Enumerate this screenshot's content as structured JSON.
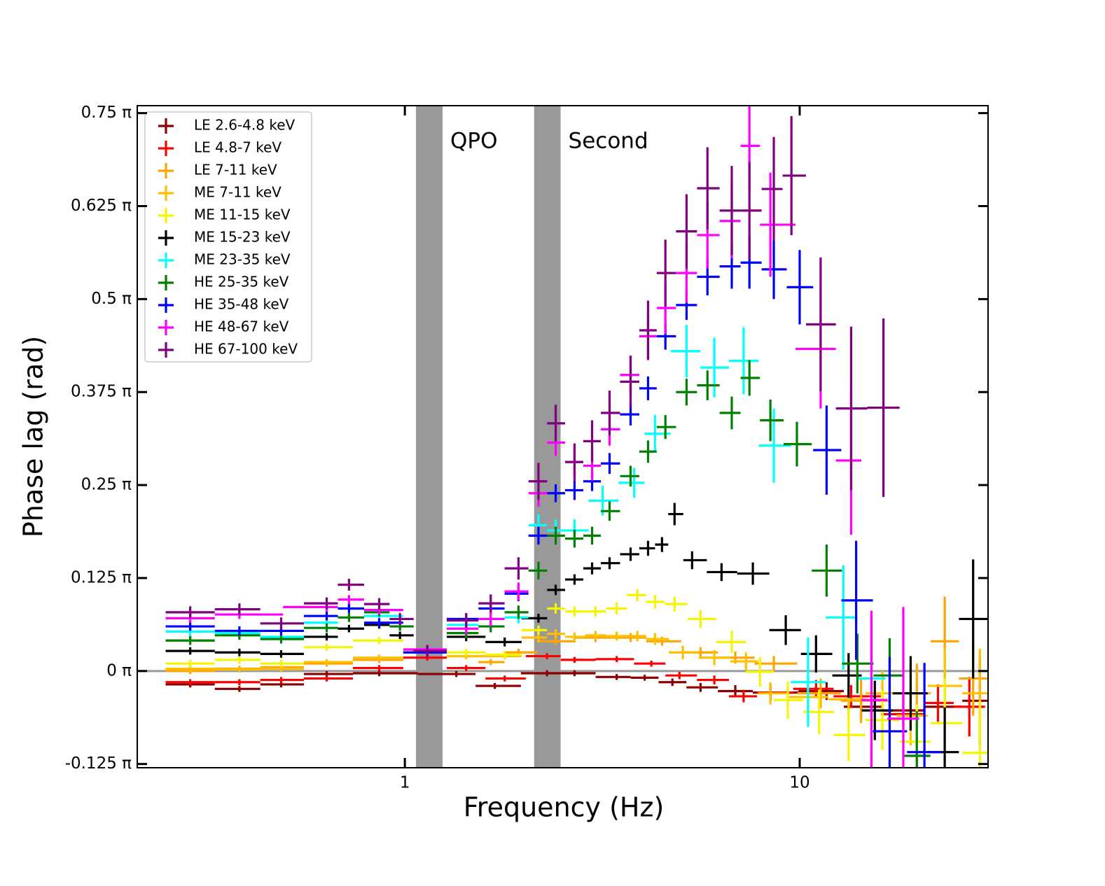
{
  "chart_data": {
    "type": "errorbar",
    "xlabel": "Frequency (Hz)",
    "ylabel": "Phase lag (rad)",
    "xscale": "log",
    "xlim": [
      0.21,
      30
    ],
    "xticks": [
      1,
      10
    ],
    "ylim": [
      -0.13,
      0.76
    ],
    "yticks": [
      {
        "value": -0.125,
        "label": "-0.125 π"
      },
      {
        "value": 0,
        "label": "0 π"
      },
      {
        "value": 0.125,
        "label": "0.125 π"
      },
      {
        "value": 0.25,
        "label": "0.25 π"
      },
      {
        "value": 0.375,
        "label": "0.375 π"
      },
      {
        "value": 0.5,
        "label": "0.5 π"
      },
      {
        "value": 0.625,
        "label": "0.625 π"
      },
      {
        "value": 0.75,
        "label": "0.75 π"
      }
    ],
    "reference_line": 0,
    "shaded_regions": [
      {
        "label": "QPO",
        "range": [
          1.067,
          1.246
        ],
        "color": "#999999"
      },
      {
        "label": "Second",
        "range": [
          2.125,
          2.48
        ],
        "color": "#999999"
      }
    ],
    "legend": "upper left",
    "series": [
      {
        "name": "LE 2.6-4.8 keV",
        "color": "#8b0000",
        "x": [
          0.286,
          0.381,
          0.486,
          0.634,
          0.861,
          1.35,
          1.69,
          2.29,
          2.69,
          3.44,
          4.05,
          4.76,
          5.61,
          6.87,
          8.43,
          11.7,
          14.3,
          18.3,
          23.3,
          28.6
        ],
        "values": [
          -0.018,
          -0.024,
          -0.018,
          -0.004,
          -0.003,
          -0.004,
          -0.02,
          -0.003,
          -0.003,
          -0.008,
          -0.009,
          -0.015,
          -0.022,
          -0.027,
          -0.029,
          -0.027,
          -0.048,
          -0.053,
          -0.048,
          -0.04
        ],
        "yerr": [
          0.004,
          0.004,
          0.004,
          0.004,
          0.004,
          0.004,
          0.004,
          0.004,
          0.004,
          0.004,
          0.004,
          0.005,
          0.006,
          0.008,
          0.01,
          0.012,
          0.015,
          0.02,
          0.03,
          0.06
        ]
      },
      {
        "name": "LE 4.8-7 keV",
        "color": "#ff0000",
        "x": [
          0.286,
          0.381,
          0.486,
          0.634,
          0.861,
          1.14,
          1.43,
          1.79,
          2.29,
          2.69,
          3.44,
          4.21,
          4.96,
          6.08,
          7.21,
          8.43,
          11.0,
          13.5,
          19.1,
          22.4,
          26.9
        ],
        "values": [
          -0.015,
          -0.015,
          -0.012,
          -0.01,
          0.004,
          0.018,
          0.004,
          -0.01,
          0.02,
          0.015,
          0.016,
          0.01,
          -0.006,
          -0.012,
          -0.034,
          -0.029,
          -0.024,
          -0.034,
          -0.058,
          -0.043,
          -0.048
        ],
        "yerr": [
          0.004,
          0.004,
          0.004,
          0.004,
          0.004,
          0.004,
          0.004,
          0.004,
          0.004,
          0.004,
          0.004,
          0.004,
          0.005,
          0.006,
          0.008,
          0.01,
          0.012,
          0.015,
          0.02,
          0.025,
          0.04
        ]
      },
      {
        "name": "LE 7-11 keV",
        "color": "#ffa500",
        "x": [
          0.286,
          0.381,
          0.486,
          0.634,
          0.861,
          1.14,
          1.43,
          1.65,
          1.94,
          2.41,
          3.04,
          3.73,
          4.48,
          5.61,
          6.87,
          8.6,
          11.3,
          14.3,
          19.8,
          23.3,
          27.5
        ],
        "values": [
          0.0,
          0.003,
          0.005,
          0.01,
          0.015,
          0.025,
          0.02,
          0.012,
          0.025,
          0.04,
          0.045,
          0.045,
          0.04,
          0.025,
          0.018,
          0.01,
          -0.03,
          -0.04,
          -0.03,
          0.04,
          -0.01
        ],
        "yerr": [
          0.004,
          0.004,
          0.004,
          0.004,
          0.004,
          0.004,
          0.004,
          0.004,
          0.005,
          0.005,
          0.006,
          0.006,
          0.006,
          0.007,
          0.008,
          0.01,
          0.02,
          0.03,
          0.04,
          0.06,
          0.05
        ]
      },
      {
        "name": "ME 7-11 keV",
        "color": "#ffc000",
        "x": [
          0.286,
          0.381,
          0.486,
          0.634,
          0.861,
          1.14,
          1.43,
          1.79,
          2.18,
          2.41,
          2.69,
          3.04,
          3.44,
          3.88,
          4.3,
          5.06,
          6.08,
          7.31,
          8.43,
          10.5,
          13.3,
          16.2,
          19.1,
          23.3,
          28.6
        ],
        "values": [
          0.003,
          0.002,
          0.003,
          0.012,
          0.018,
          0.025,
          0.02,
          0.02,
          0.045,
          0.05,
          0.046,
          0.048,
          0.047,
          0.047,
          0.043,
          0.025,
          0.018,
          0.013,
          -0.03,
          -0.035,
          -0.038,
          -0.03,
          -0.06,
          -0.02,
          -0.03
        ],
        "yerr": [
          0.004,
          0.004,
          0.004,
          0.004,
          0.004,
          0.004,
          0.004,
          0.004,
          0.006,
          0.006,
          0.006,
          0.006,
          0.006,
          0.007,
          0.008,
          0.009,
          0.01,
          0.012,
          0.015,
          0.02,
          0.025,
          0.03,
          0.04,
          0.05,
          0.06
        ]
      },
      {
        "name": "ME 11-15 keV",
        "color": "#f5f500",
        "x": [
          0.286,
          0.381,
          0.486,
          0.634,
          0.861,
          1.14,
          1.43,
          1.79,
          2.18,
          2.41,
          2.69,
          3.04,
          3.44,
          3.88,
          4.3,
          4.82,
          5.61,
          6.73,
          7.93,
          9.33,
          11.2,
          13.3,
          16.2,
          19.8,
          23.3,
          28.6
        ],
        "values": [
          0.01,
          0.015,
          0.01,
          0.032,
          0.041,
          0.027,
          0.025,
          0.022,
          0.055,
          0.084,
          0.08,
          0.08,
          0.084,
          0.102,
          0.093,
          0.09,
          0.07,
          0.039,
          -0.001,
          -0.039,
          -0.055,
          -0.086,
          -0.066,
          -0.095,
          -0.07,
          -0.11
        ],
        "yerr": [
          0.005,
          0.005,
          0.005,
          0.005,
          0.005,
          0.005,
          0.005,
          0.005,
          0.006,
          0.007,
          0.007,
          0.007,
          0.008,
          0.008,
          0.009,
          0.01,
          0.012,
          0.015,
          0.02,
          0.025,
          0.03,
          0.035,
          0.04,
          0.05,
          0.06,
          0.07
        ]
      },
      {
        "name": "ME 15-23 keV",
        "color": "#000000",
        "x": [
          0.286,
          0.381,
          0.486,
          0.634,
          0.722,
          0.861,
          0.972,
          1.14,
          1.43,
          1.79,
          2.18,
          2.41,
          2.69,
          2.98,
          3.3,
          3.73,
          4.13,
          4.48,
          4.82,
          5.34,
          6.34,
          7.61,
          9.22,
          11.0,
          13.3,
          15.5,
          19.1,
          23.3,
          27.5
        ],
        "values": [
          0.027,
          0.025,
          0.023,
          0.046,
          0.057,
          0.062,
          0.048,
          0.026,
          0.046,
          0.039,
          0.071,
          0.109,
          0.123,
          0.138,
          0.145,
          0.157,
          0.165,
          0.17,
          0.211,
          0.149,
          0.133,
          0.131,
          0.055,
          0.023,
          -0.006,
          -0.053,
          -0.03,
          -0.109,
          0.07
        ],
        "yerr": [
          0.005,
          0.005,
          0.005,
          0.005,
          0.005,
          0.005,
          0.005,
          0.005,
          0.006,
          0.006,
          0.006,
          0.007,
          0.007,
          0.008,
          0.008,
          0.009,
          0.01,
          0.01,
          0.015,
          0.012,
          0.012,
          0.015,
          0.02,
          0.025,
          0.03,
          0.04,
          0.05,
          0.06,
          0.08
        ]
      },
      {
        "name": "ME 23-35 keV",
        "color": "#00ffff",
        "x": [
          0.286,
          0.381,
          0.486,
          0.634,
          0.722,
          0.861,
          1.14,
          1.43,
          1.65,
          1.94,
          2.18,
          2.41,
          2.69,
          3.17,
          3.81,
          4.3,
          5.17,
          6.08,
          7.21,
          8.6,
          10.5,
          12.9,
          15.2
        ],
        "values": [
          0.053,
          0.051,
          0.046,
          0.065,
          0.084,
          0.074,
          0.025,
          0.062,
          0.07,
          0.072,
          0.196,
          0.189,
          0.189,
          0.229,
          0.253,
          0.319,
          0.43,
          0.408,
          0.417,
          0.303,
          -0.015,
          0.072,
          -0.01
        ],
        "yerr": [
          0.006,
          0.006,
          0.006,
          0.006,
          0.006,
          0.006,
          0.006,
          0.007,
          0.008,
          0.008,
          0.015,
          0.015,
          0.015,
          0.02,
          0.02,
          0.025,
          0.035,
          0.04,
          0.045,
          0.05,
          0.06,
          0.07,
          0.08
        ]
      },
      {
        "name": "HE 25-35 keV",
        "color": "#008000",
        "x": [
          0.286,
          0.381,
          0.486,
          0.634,
          0.722,
          0.861,
          0.972,
          1.14,
          1.43,
          1.65,
          1.94,
          2.18,
          2.41,
          2.69,
          2.98,
          3.3,
          3.73,
          4.13,
          4.57,
          5.17,
          5.84,
          6.73,
          7.46,
          8.43,
          9.84,
          11.7,
          14.0,
          16.9,
          19.8
        ],
        "values": [
          0.041,
          0.048,
          0.043,
          0.058,
          0.072,
          0.079,
          0.06,
          0.027,
          0.051,
          0.06,
          0.079,
          0.135,
          0.182,
          0.178,
          0.182,
          0.215,
          0.262,
          0.295,
          0.328,
          0.375,
          0.384,
          0.347,
          0.394,
          0.337,
          0.305,
          0.135,
          0.01,
          -0.006,
          -0.114
        ],
        "yerr": [
          0.006,
          0.006,
          0.006,
          0.006,
          0.006,
          0.006,
          0.006,
          0.006,
          0.007,
          0.008,
          0.009,
          0.012,
          0.012,
          0.012,
          0.012,
          0.013,
          0.014,
          0.015,
          0.016,
          0.018,
          0.02,
          0.022,
          0.024,
          0.028,
          0.03,
          0.035,
          0.04,
          0.05,
          0.06
        ]
      },
      {
        "name": "HE 35-48 keV",
        "color": "#0000ff",
        "x": [
          0.286,
          0.381,
          0.486,
          0.634,
          0.722,
          0.861,
          1.14,
          1.43,
          1.65,
          1.94,
          2.18,
          2.41,
          2.69,
          2.98,
          3.3,
          3.73,
          4.13,
          4.57,
          5.17,
          5.84,
          6.73,
          7.46,
          8.6,
          10,
          11.7,
          13.9,
          16.9,
          20.7
        ],
        "values": [
          0.06,
          0.054,
          0.054,
          0.074,
          0.084,
          0.065,
          0.025,
          0.07,
          0.084,
          0.104,
          0.182,
          0.239,
          0.243,
          0.255,
          0.279,
          0.345,
          0.38,
          0.45,
          0.492,
          0.53,
          0.544,
          0.549,
          0.54,
          0.516,
          0.297,
          0.095,
          -0.081,
          -0.109
        ],
        "yerr": [
          0.006,
          0.006,
          0.006,
          0.006,
          0.006,
          0.006,
          0.006,
          0.007,
          0.008,
          0.01,
          0.012,
          0.012,
          0.013,
          0.013,
          0.014,
          0.015,
          0.016,
          0.018,
          0.02,
          0.025,
          0.03,
          0.035,
          0.04,
          0.05,
          0.06,
          0.08,
          0.1,
          0.12
        ]
      },
      {
        "name": "HE 48-67 keV",
        "color": "#ff00ff",
        "x": [
          0.286,
          0.381,
          0.634,
          0.722,
          0.861,
          1.14,
          1.43,
          1.65,
          1.94,
          2.18,
          2.41,
          2.69,
          2.98,
          3.3,
          3.73,
          4.13,
          4.57,
          5.17,
          5.84,
          6.73,
          7.46,
          8.43,
          11.3,
          13.5,
          15.2,
          18.3
        ],
        "values": [
          0.071,
          0.076,
          0.086,
          0.096,
          0.082,
          0.029,
          0.057,
          0.07,
          0.107,
          0.239,
          0.307,
          0.281,
          0.276,
          0.325,
          0.398,
          0.45,
          0.488,
          0.535,
          0.586,
          0.605,
          0.706,
          0.6,
          0.433,
          0.283,
          -0.039,
          -0.064
        ],
        "yerr": [
          0.006,
          0.006,
          0.006,
          0.006,
          0.006,
          0.006,
          0.008,
          0.01,
          0.012,
          0.018,
          0.018,
          0.02,
          0.02,
          0.022,
          0.025,
          0.03,
          0.035,
          0.04,
          0.045,
          0.05,
          0.06,
          0.07,
          0.08,
          0.1,
          0.12,
          0.15
        ]
      },
      {
        "name": "HE 67-100 keV",
        "color": "#800080",
        "x": [
          0.286,
          0.381,
          0.486,
          0.634,
          0.722,
          0.861,
          0.972,
          1.14,
          1.43,
          1.65,
          1.94,
          2.18,
          2.41,
          2.69,
          2.98,
          3.3,
          3.73,
          4.13,
          4.57,
          5.17,
          5.84,
          6.73,
          7.46,
          8.6,
          9.53,
          11.3,
          13.5,
          16.3
        ],
        "values": [
          0.079,
          0.083,
          0.064,
          0.091,
          0.116,
          0.09,
          0.07,
          0.027,
          0.068,
          0.091,
          0.138,
          0.255,
          0.333,
          0.281,
          0.309,
          0.347,
          0.389,
          0.458,
          0.535,
          0.591,
          0.649,
          0.619,
          0.619,
          0.648,
          0.666,
          0.466,
          0.353,
          0.354
        ],
        "yerr": [
          0.008,
          0.008,
          0.008,
          0.008,
          0.008,
          0.008,
          0.008,
          0.008,
          0.01,
          0.012,
          0.015,
          0.025,
          0.025,
          0.025,
          0.028,
          0.03,
          0.035,
          0.04,
          0.045,
          0.05,
          0.055,
          0.06,
          0.065,
          0.07,
          0.08,
          0.09,
          0.11,
          0.12
        ]
      }
    ]
  }
}
